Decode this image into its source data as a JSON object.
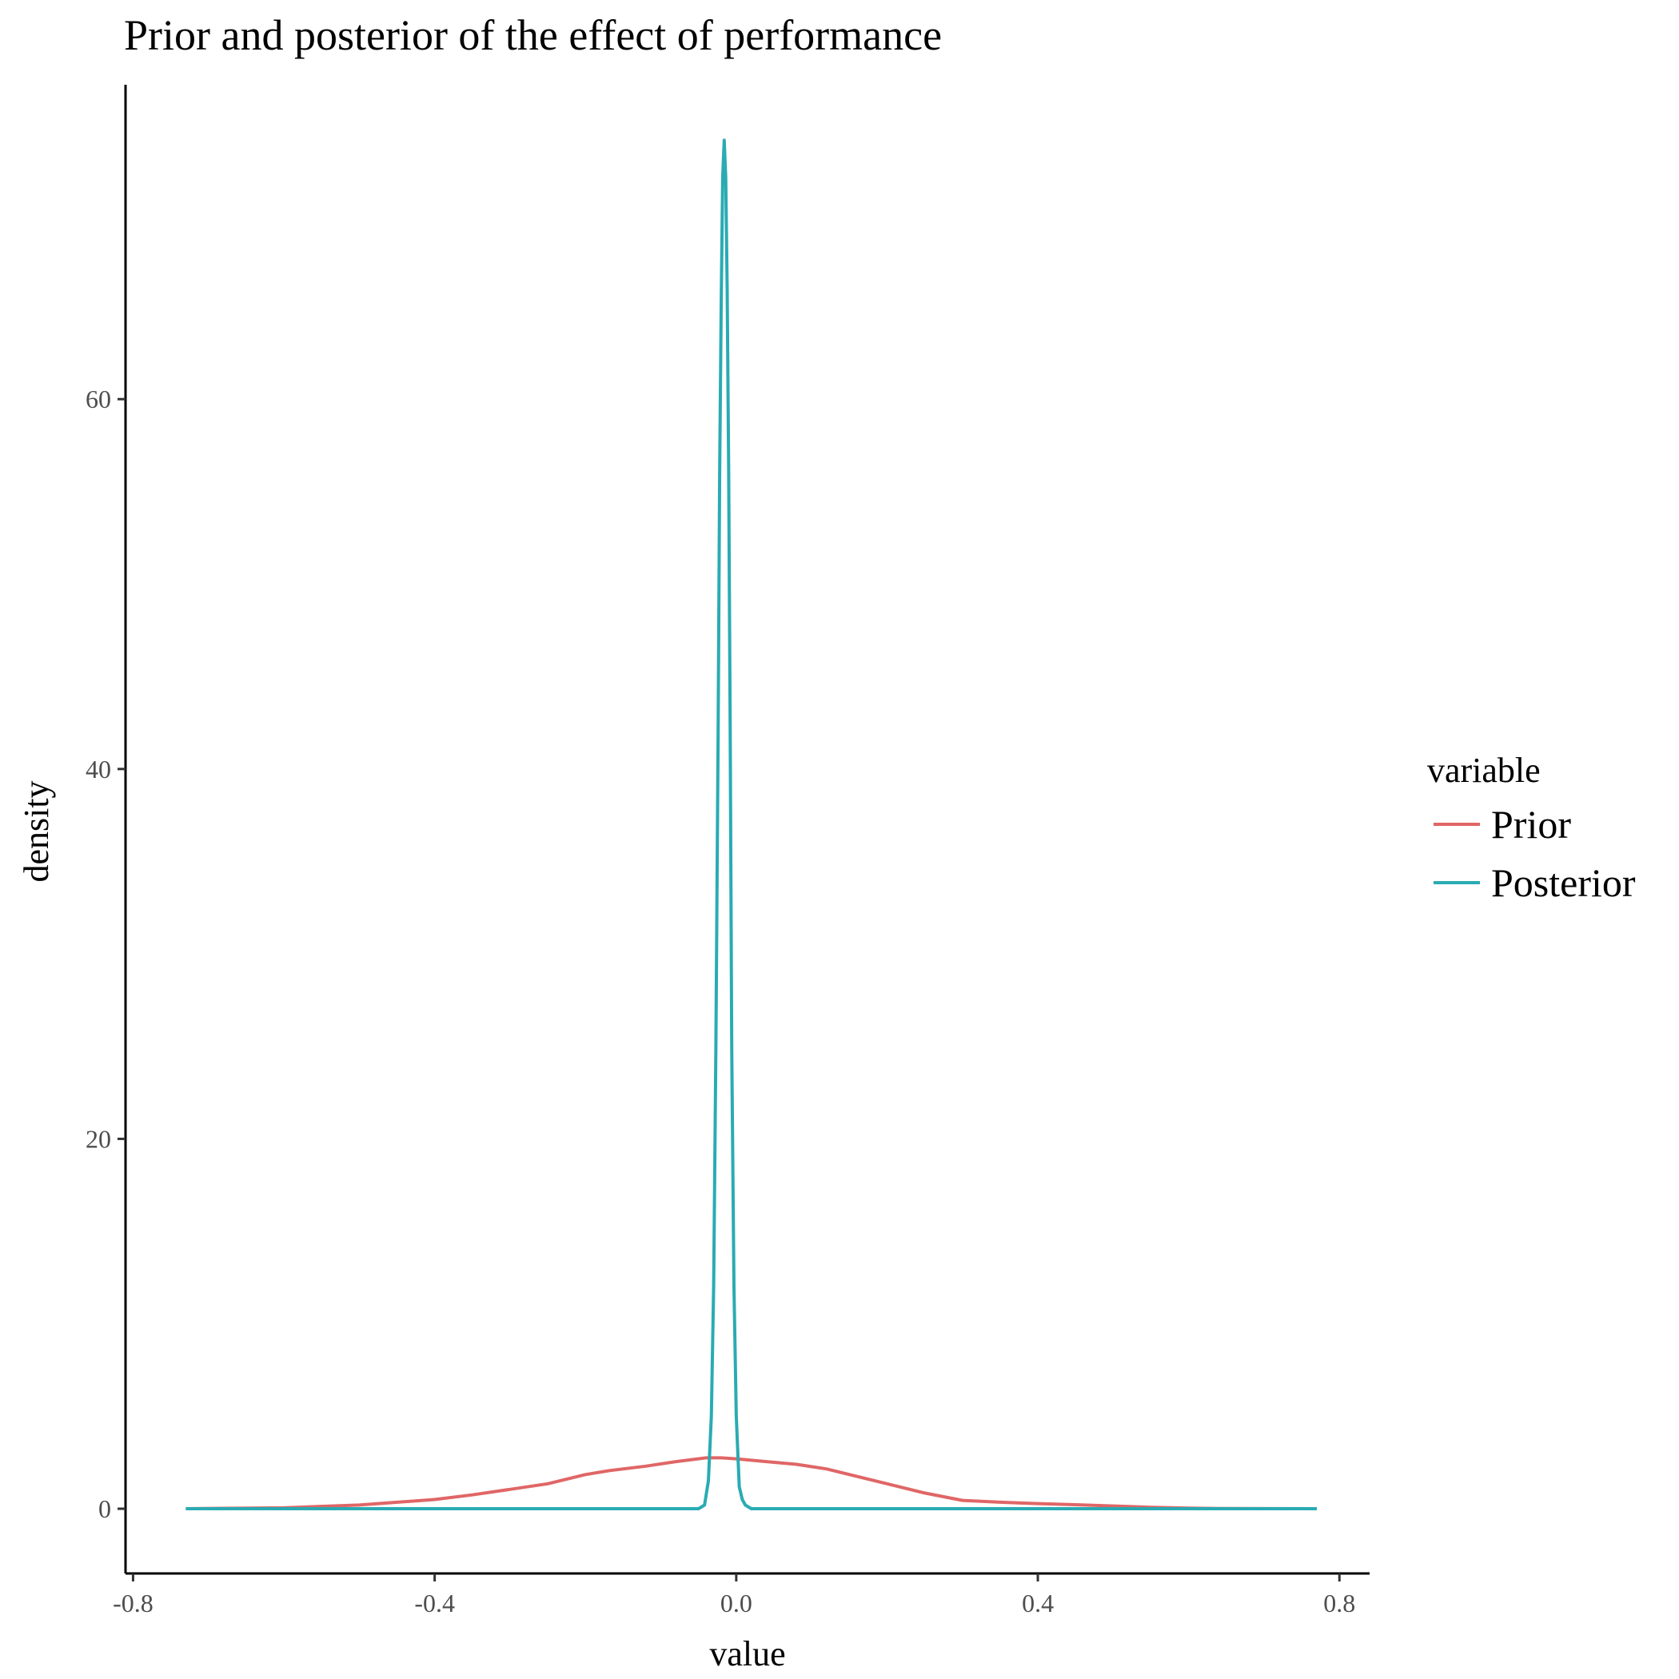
{
  "chart_data": {
    "type": "line",
    "title": "Prior and posterior of the effect of performance",
    "xlabel": "value",
    "ylabel": "density",
    "xlim": [
      -0.81,
      0.84
    ],
    "ylim": [
      -3.5,
      77
    ],
    "x_ticks": [
      -0.8,
      -0.4,
      0.0,
      0.4,
      0.8
    ],
    "x_tick_labels": [
      "-0.8",
      "-0.4",
      "0.0",
      "0.4",
      "0.8"
    ],
    "y_ticks": [
      0,
      20,
      40,
      60
    ],
    "y_tick_labels": [
      "0",
      "20",
      "40",
      "60"
    ],
    "grid": false,
    "legend": {
      "title": "variable",
      "position": "right"
    },
    "series": [
      {
        "name": "Prior",
        "color": "#e06666",
        "x": [
          -0.73,
          -0.6,
          -0.5,
          -0.4,
          -0.35,
          -0.3,
          -0.25,
          -0.2,
          -0.17,
          -0.12,
          -0.08,
          -0.04,
          -0.02,
          0.0,
          0.04,
          0.08,
          0.12,
          0.16,
          0.2,
          0.25,
          0.3,
          0.35,
          0.4,
          0.45,
          0.5,
          0.55,
          0.6,
          0.65,
          0.77
        ],
        "y": [
          0.0,
          0.05,
          0.2,
          0.5,
          0.75,
          1.05,
          1.35,
          1.85,
          2.05,
          2.3,
          2.55,
          2.75,
          2.75,
          2.7,
          2.55,
          2.4,
          2.15,
          1.75,
          1.35,
          0.85,
          0.45,
          0.35,
          0.28,
          0.22,
          0.15,
          0.08,
          0.03,
          0.01,
          0.0
        ]
      },
      {
        "name": "Posterior",
        "color": "#2aabb3",
        "x": [
          -0.73,
          -0.05,
          -0.042,
          -0.037,
          -0.033,
          -0.03,
          -0.027,
          -0.024,
          -0.022,
          -0.02,
          -0.018,
          -0.016,
          -0.014,
          -0.012,
          -0.01,
          -0.008,
          -0.006,
          -0.003,
          0.0,
          0.004,
          0.008,
          0.012,
          0.02,
          0.77
        ],
        "y": [
          0.0,
          0.0,
          0.2,
          1.5,
          5.0,
          12.0,
          25.0,
          42.0,
          56.0,
          65.0,
          72.0,
          74.0,
          72.0,
          66.0,
          56.0,
          42.0,
          25.0,
          12.0,
          5.0,
          1.2,
          0.5,
          0.2,
          0.0,
          0.0
        ]
      }
    ]
  }
}
